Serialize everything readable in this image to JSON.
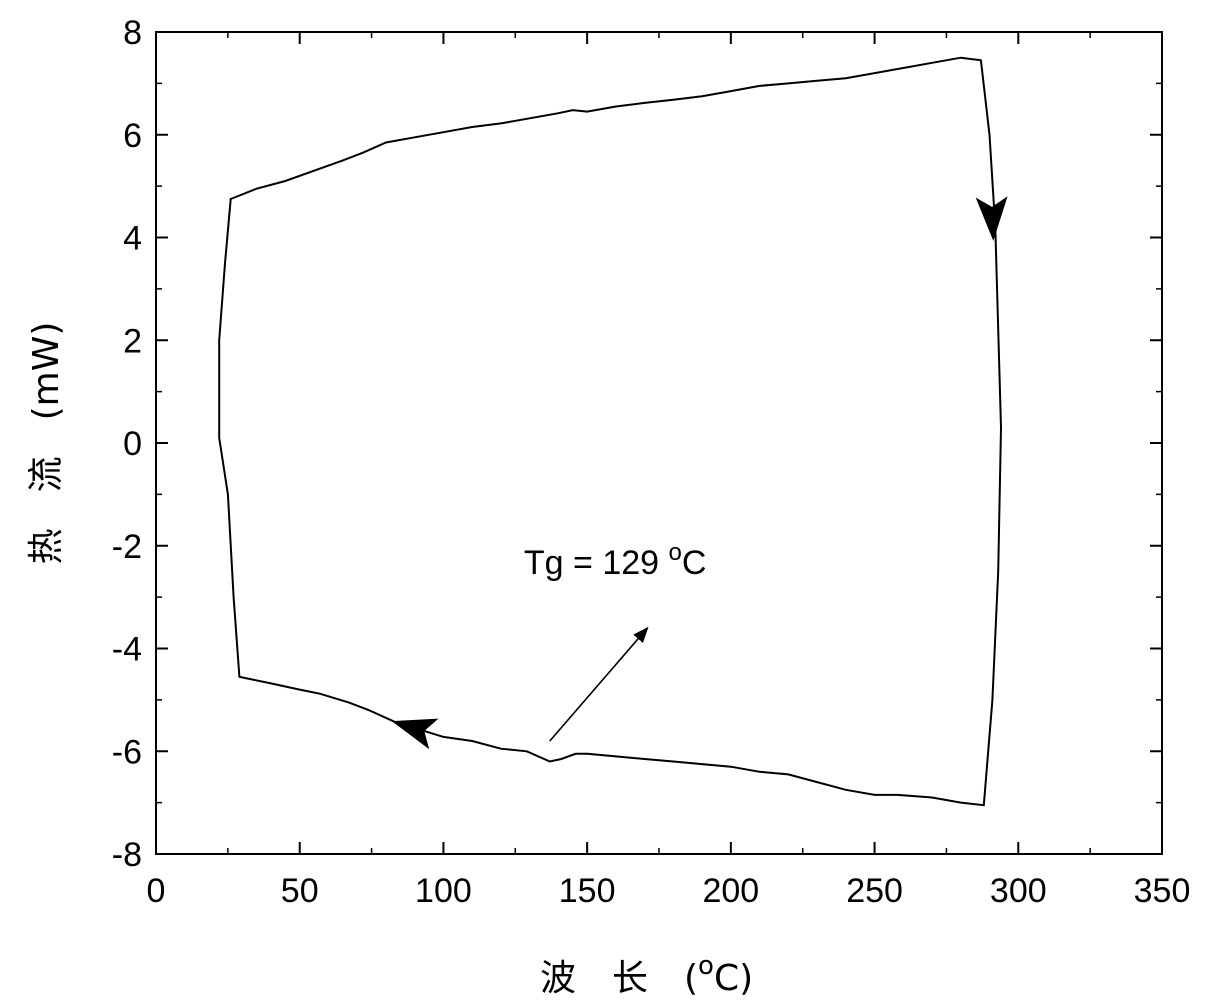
{
  "chart_data": {
    "type": "line",
    "title": "",
    "xlabel": "波 长 (oC)",
    "xlabel_main": "波　长　(",
    "xlabel_sup": "o",
    "xlabel_unit": "C)",
    "ylabel": "热 流 (mW)",
    "ylabel_main": "热　流　(mW)",
    "xlim": [
      0,
      350
    ],
    "ylim": [
      -8,
      8
    ],
    "x_ticks": [
      0,
      50,
      100,
      150,
      200,
      250,
      300,
      350
    ],
    "y_ticks": [
      -8,
      -6,
      -4,
      -2,
      0,
      2,
      4,
      6,
      8
    ],
    "x_tick_labels": [
      "0",
      "50",
      "100",
      "150",
      "200",
      "250",
      "300",
      "350"
    ],
    "y_tick_labels": [
      "-8",
      "-6",
      "-4",
      "-2",
      "0",
      "2",
      "4",
      "6",
      "8"
    ],
    "grid": false,
    "legend": "none",
    "line_color": "#000000",
    "series": [
      {
        "x": [
          26,
          35,
          45,
          55,
          65,
          72,
          80,
          90,
          100,
          110,
          120,
          130,
          140,
          145,
          150,
          160,
          170,
          180,
          190,
          200,
          210,
          220,
          230,
          240,
          250,
          260,
          270,
          280,
          287,
          290,
          292,
          294,
          293,
          291,
          288,
          280,
          270,
          258,
          250,
          240,
          230,
          220,
          210,
          200,
          190,
          180,
          170,
          160,
          150,
          146,
          141,
          137,
          129,
          120,
          110,
          100,
          93,
          84,
          74,
          67,
          57,
          50,
          40,
          29,
          27,
          25,
          22,
          22,
          24,
          26
        ],
        "y": [
          4.75,
          4.95,
          5.1,
          5.3,
          5.5,
          5.65,
          5.85,
          5.95,
          6.05,
          6.15,
          6.22,
          6.32,
          6.42,
          6.48,
          6.45,
          6.55,
          6.62,
          6.68,
          6.75,
          6.85,
          6.95,
          7.0,
          7.05,
          7.1,
          7.2,
          7.3,
          7.4,
          7.5,
          7.45,
          6.0,
          4.2,
          0.3,
          -2.5,
          -5.0,
          -7.05,
          -7.0,
          -6.9,
          -6.85,
          -6.85,
          -6.75,
          -6.6,
          -6.45,
          -6.4,
          -6.3,
          -6.25,
          -6.2,
          -6.15,
          -6.1,
          -6.05,
          -6.05,
          -6.15,
          -6.2,
          -6.0,
          -5.95,
          -5.8,
          -5.72,
          -5.6,
          -5.45,
          -5.2,
          -5.05,
          -4.88,
          -4.8,
          -4.68,
          -4.55,
          -3.0,
          -1.0,
          0.1,
          2.0,
          3.5,
          4.75
        ]
      }
    ],
    "direction_arrows": [
      {
        "x": 90,
        "y": -5.55
      },
      {
        "x": 291,
        "y": 4.4
      }
    ],
    "annotations": [
      {
        "text": "Tg = 129 ",
        "sup": "o",
        "unit": "C",
        "text_x": 128,
        "text_y": -2.55,
        "arrow_from": [
          137,
          -5.8
        ],
        "arrow_to": [
          171,
          -3.6
        ]
      }
    ]
  }
}
